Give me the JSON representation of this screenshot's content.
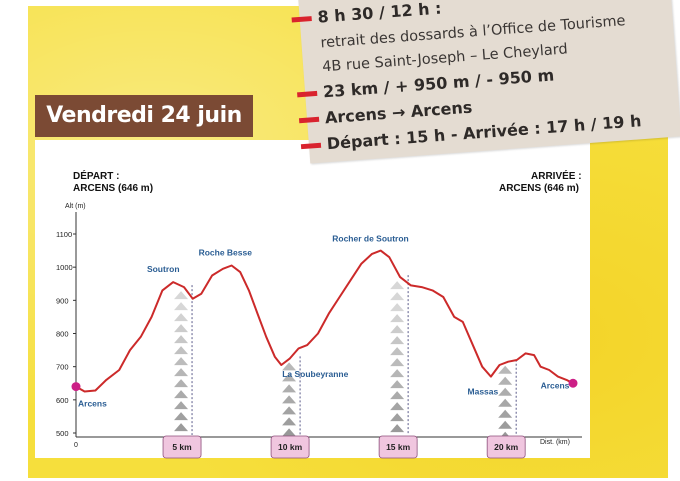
{
  "date_banner": "Vendredi 24 juin",
  "info": {
    "line1": "8 h 30 / 12 h :",
    "line2": "retrait des dossards à l’Office de Tourisme",
    "line3": "4B rue Saint-Joseph – Le Cheylard",
    "line4": "23 km / + 950 m / - 950 m",
    "line5": "Arcens → Arcens",
    "line6": "Départ : 15 h - Arrivée : 17 h / 19 h"
  },
  "start_label": "DÉPART :",
  "start_place": "ARCENS (646 m)",
  "end_label": "ARRIVÉE :",
  "end_place": "ARCENS (646 m)",
  "colors": {
    "profile": "#cc2a2a",
    "banner": "#7b4a34",
    "km_box": "#f0c6df",
    "endpoint": "#cc1f86",
    "place_label": "#2a5d93"
  },
  "chart_data": {
    "type": "line",
    "title": "",
    "ylabel": "Alt (m)",
    "xlabel": "Dist. (km)",
    "ylim": [
      500,
      1150
    ],
    "yticks": [
      "500",
      "600",
      "700",
      "800",
      "900",
      "1000",
      "1100"
    ],
    "x_origin_label": "0",
    "xlim": [
      0,
      23
    ],
    "km_markers": [
      {
        "x": 5,
        "label": "5 km"
      },
      {
        "x": 10,
        "label": "10 km"
      },
      {
        "x": 15,
        "label": "15 km"
      },
      {
        "x": 20,
        "label": "20 km"
      }
    ],
    "waypoints": [
      {
        "name": "Arcens",
        "x": 0,
        "y": 646
      },
      {
        "name": "Soutron",
        "x": 4.5,
        "y": 955
      },
      {
        "name": "Roche Besse",
        "x": 7,
        "y": 1005
      },
      {
        "name": "La Soubeyranne",
        "x": 9.5,
        "y": 705
      },
      {
        "name": "Rocher de Soutron",
        "x": 14,
        "y": 1050
      },
      {
        "name": "Massas",
        "x": 19.2,
        "y": 670
      },
      {
        "name": "Arcens",
        "x": 23,
        "y": 646
      }
    ],
    "series": [
      {
        "name": "",
        "points": [
          [
            0,
            640
          ],
          [
            0.4,
            625
          ],
          [
            0.9,
            628
          ],
          [
            1.4,
            660
          ],
          [
            2.0,
            690
          ],
          [
            2.5,
            750
          ],
          [
            3.0,
            790
          ],
          [
            3.5,
            850
          ],
          [
            4.0,
            930
          ],
          [
            4.5,
            955
          ],
          [
            5.0,
            940
          ],
          [
            5.4,
            905
          ],
          [
            5.8,
            920
          ],
          [
            6.3,
            975
          ],
          [
            6.8,
            995
          ],
          [
            7.2,
            1005
          ],
          [
            7.6,
            985
          ],
          [
            8.0,
            930
          ],
          [
            8.4,
            860
          ],
          [
            8.8,
            790
          ],
          [
            9.2,
            730
          ],
          [
            9.5,
            705
          ],
          [
            9.9,
            725
          ],
          [
            10.3,
            755
          ],
          [
            10.7,
            765
          ],
          [
            11.2,
            800
          ],
          [
            11.7,
            860
          ],
          [
            12.2,
            910
          ],
          [
            12.7,
            960
          ],
          [
            13.2,
            1010
          ],
          [
            13.7,
            1040
          ],
          [
            14.1,
            1050
          ],
          [
            14.5,
            1030
          ],
          [
            15.0,
            970
          ],
          [
            15.5,
            945
          ],
          [
            16.0,
            940
          ],
          [
            16.5,
            930
          ],
          [
            17.0,
            910
          ],
          [
            17.5,
            850
          ],
          [
            17.9,
            835
          ],
          [
            18.4,
            760
          ],
          [
            18.8,
            700
          ],
          [
            19.2,
            670
          ],
          [
            19.6,
            705
          ],
          [
            20.0,
            715
          ],
          [
            20.4,
            720
          ],
          [
            20.8,
            740
          ],
          [
            21.2,
            735
          ],
          [
            21.5,
            700
          ],
          [
            21.9,
            690
          ],
          [
            22.3,
            670
          ],
          [
            22.7,
            660
          ],
          [
            23.0,
            650
          ]
        ]
      }
    ]
  }
}
